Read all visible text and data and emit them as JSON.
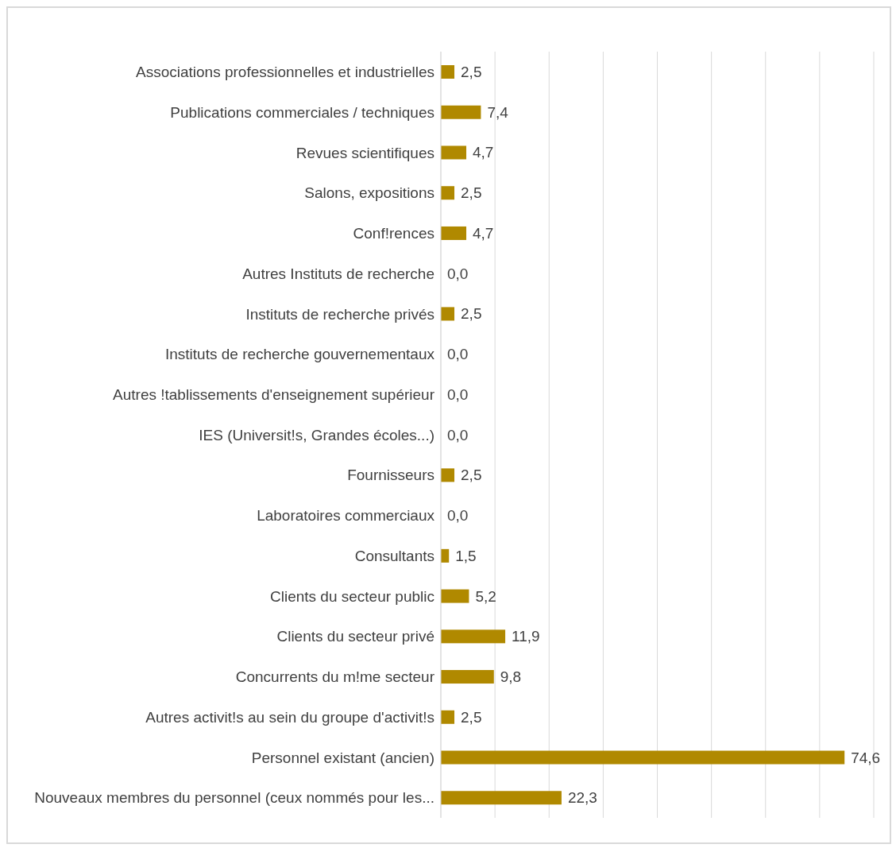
{
  "chart_data": {
    "type": "bar",
    "orientation": "horizontal",
    "categories": [
      "Associations professionnelles et industrielles",
      "Publications commerciales / techniques",
      "Revues scientifiques",
      "Salons, expositions",
      "Conf!rences",
      "Autres Instituts de recherche",
      "Instituts de recherche privés",
      "Instituts de recherche gouvernementaux",
      "Autres !tablissements d'enseignement supérieur",
      "IES (Universit!s, Grandes écoles...)",
      "Fournisseurs",
      "Laboratoires commerciaux",
      "Consultants",
      "Clients du secteur public",
      "Clients du secteur privé",
      "Concurrents du m!me secteur",
      "Autres activit!s au sein du groupe d'activit!s",
      "Personnel existant (ancien)",
      "Nouveaux membres du personnel (ceux nommés pour les..."
    ],
    "values": [
      2.5,
      7.4,
      4.7,
      2.5,
      4.7,
      0.0,
      2.5,
      0.0,
      0.0,
      0.0,
      2.5,
      0.0,
      1.5,
      5.2,
      11.9,
      9.8,
      2.5,
      74.6,
      22.3
    ],
    "value_labels": [
      "2,5",
      "7,4",
      "4,7",
      "2,5",
      "4,7",
      "0,0",
      "2,5",
      "0,0",
      "0,0",
      "0,0",
      "2,5",
      "0,0",
      "1,5",
      "5,2",
      "11,9",
      "9,8",
      "2,5",
      "74,6",
      "22,3"
    ],
    "color": "#b08900",
    "grid": "x",
    "tick_labels": "y"
  }
}
